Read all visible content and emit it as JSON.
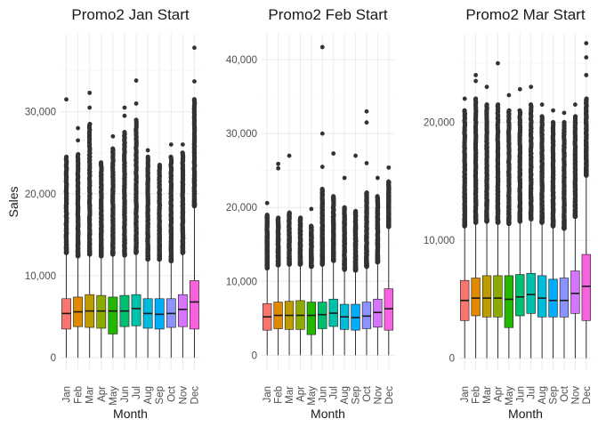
{
  "xlabel": "Month",
  "ylabel": "Sales",
  "months": [
    "Jan",
    "Feb",
    "Mar",
    "Apr",
    "May",
    "Jun",
    "Jul",
    "Aug",
    "Sep",
    "Oct",
    "Nov",
    "Dec"
  ],
  "colors": [
    "#F8766D",
    "#E18A00",
    "#BE9C00",
    "#8CAB00",
    "#24B700",
    "#00BE70",
    "#00C1AB",
    "#00BBDA",
    "#00ACFC",
    "#8B93FF",
    "#D575FE",
    "#F962DD"
  ],
  "chart_data": [
    {
      "type": "box",
      "title": "Promo2 Jan Start",
      "xlabel": "Month",
      "ylabel": "Sales",
      "categories": [
        "Jan",
        "Feb",
        "Mar",
        "Apr",
        "May",
        "Jun",
        "Jul",
        "Aug",
        "Sep",
        "Oct",
        "Nov",
        "Dec"
      ],
      "ylim": [
        -1500,
        39500
      ],
      "yticks": [
        0,
        10000,
        20000,
        30000
      ],
      "ytick_labels": [
        "0",
        "10,000",
        "20,000",
        "30,000"
      ],
      "boxes": [
        {
          "q1": 3500,
          "median": 5400,
          "q3": 7200,
          "whisker_low": 0,
          "whisker_high": 12800,
          "dense_top": 24500,
          "outliers": [
            31500
          ]
        },
        {
          "q1": 3800,
          "median": 5600,
          "q3": 7400,
          "whisker_low": 0,
          "whisker_high": 12400,
          "dense_top": 24800,
          "outliers": [
            26500,
            28000
          ]
        },
        {
          "q1": 3700,
          "median": 5700,
          "q3": 7700,
          "whisker_low": 0,
          "whisker_high": 12600,
          "dense_top": 28500,
          "outliers": [
            30500,
            32300
          ]
        },
        {
          "q1": 3600,
          "median": 5700,
          "q3": 7600,
          "whisker_low": 0,
          "whisker_high": 12400,
          "dense_top": 23800,
          "outliers": []
        },
        {
          "q1": 2900,
          "median": 5700,
          "q3": 7400,
          "whisker_low": 0,
          "whisker_high": 12600,
          "dense_top": 25500,
          "outliers": [
            27000
          ]
        },
        {
          "q1": 3800,
          "median": 5700,
          "q3": 7600,
          "whisker_low": 0,
          "whisker_high": 12500,
          "dense_top": 27500,
          "outliers": [
            29500,
            30500
          ]
        },
        {
          "q1": 3900,
          "median": 6000,
          "q3": 7700,
          "whisker_low": 0,
          "whisker_high": 12800,
          "dense_top": 29000,
          "outliers": [
            31000,
            33800
          ]
        },
        {
          "q1": 3600,
          "median": 5400,
          "q3": 7200,
          "whisker_low": 0,
          "whisker_high": 12000,
          "dense_top": 24500,
          "outliers": [
            25300
          ]
        },
        {
          "q1": 3500,
          "median": 5300,
          "q3": 7200,
          "whisker_low": 0,
          "whisker_high": 12000,
          "dense_top": 23500,
          "outliers": []
        },
        {
          "q1": 3700,
          "median": 5400,
          "q3": 7200,
          "whisker_low": 0,
          "whisker_high": 11800,
          "dense_top": 24500,
          "outliers": [
            26000
          ]
        },
        {
          "q1": 3800,
          "median": 5900,
          "q3": 7700,
          "whisker_low": 0,
          "whisker_high": 12800,
          "dense_top": 25000,
          "outliers": [
            26000
          ]
        },
        {
          "q1": 3500,
          "median": 6800,
          "q3": 9400,
          "whisker_low": 0,
          "whisker_high": 18500,
          "dense_top": 31500,
          "outliers": [
            33700,
            37800
          ]
        }
      ]
    },
    {
      "type": "box",
      "title": "Promo2 Feb Start",
      "xlabel": "Month",
      "ylabel": "",
      "categories": [
        "Jan",
        "Feb",
        "Mar",
        "Apr",
        "May",
        "Jun",
        "Jul",
        "Aug",
        "Sep",
        "Oct",
        "Nov",
        "Dec"
      ],
      "ylim": [
        -2000,
        43500
      ],
      "yticks": [
        0,
        10000,
        20000,
        30000,
        40000
      ],
      "ytick_labels": [
        "0",
        "10,000",
        "20,000",
        "30,000",
        "40,000"
      ],
      "boxes": [
        {
          "q1": 3400,
          "median": 5200,
          "q3": 7000,
          "whisker_low": 0,
          "whisker_high": 11800,
          "dense_top": 19000,
          "outliers": [
            20600
          ]
        },
        {
          "q1": 3600,
          "median": 5400,
          "q3": 7200,
          "whisker_low": 0,
          "whisker_high": 12200,
          "dense_top": 18600,
          "outliers": [
            25300,
            25900
          ]
        },
        {
          "q1": 3500,
          "median": 5400,
          "q3": 7300,
          "whisker_low": 0,
          "whisker_high": 12300,
          "dense_top": 19300,
          "outliers": [
            27000
          ]
        },
        {
          "q1": 3500,
          "median": 5400,
          "q3": 7400,
          "whisker_low": 0,
          "whisker_high": 12300,
          "dense_top": 18600,
          "outliers": []
        },
        {
          "q1": 2800,
          "median": 5400,
          "q3": 7200,
          "whisker_low": 0,
          "whisker_high": 12000,
          "dense_top": 17500,
          "outliers": [
            19800
          ]
        },
        {
          "q1": 3600,
          "median": 5500,
          "q3": 7200,
          "whisker_low": 0,
          "whisker_high": 12300,
          "dense_top": 22500,
          "outliers": [
            25500,
            30000,
            41700
          ]
        },
        {
          "q1": 3900,
          "median": 5700,
          "q3": 7600,
          "whisker_low": 0,
          "whisker_high": 12800,
          "dense_top": 21500,
          "outliers": [
            27300
          ]
        },
        {
          "q1": 3500,
          "median": 5200,
          "q3": 6900,
          "whisker_low": 0,
          "whisker_high": 11600,
          "dense_top": 20000,
          "outliers": [
            24000
          ]
        },
        {
          "q1": 3400,
          "median": 5100,
          "q3": 6900,
          "whisker_low": 0,
          "whisker_high": 11500,
          "dense_top": 19500,
          "outliers": [
            27000
          ]
        },
        {
          "q1": 3600,
          "median": 5300,
          "q3": 7200,
          "whisker_low": 0,
          "whisker_high": 12000,
          "dense_top": 22000,
          "outliers": [
            26000,
            31500,
            33000
          ]
        },
        {
          "q1": 3800,
          "median": 5800,
          "q3": 7600,
          "whisker_low": 0,
          "whisker_high": 12600,
          "dense_top": 21500,
          "outliers": [
            24000
          ]
        },
        {
          "q1": 3400,
          "median": 6300,
          "q3": 9000,
          "whisker_low": 0,
          "whisker_high": 17400,
          "dense_top": 23500,
          "outliers": [
            25400
          ]
        }
      ]
    },
    {
      "type": "box",
      "title": "Promo2 Mar Start",
      "xlabel": "Month",
      "ylabel": "",
      "categories": [
        "Jan",
        "Feb",
        "Mar",
        "Apr",
        "May",
        "Jun",
        "Jul",
        "Aug",
        "Sep",
        "Oct",
        "Nov",
        "Dec"
      ],
      "ylim": [
        -1000,
        27500
      ],
      "yticks": [
        0,
        10000,
        20000
      ],
      "ytick_labels": [
        "0",
        "10,000",
        "20,000"
      ],
      "boxes": [
        {
          "q1": 3200,
          "median": 4900,
          "q3": 6600,
          "whisker_low": 0,
          "whisker_high": 11200,
          "dense_top": 21000,
          "outliers": [
            22000
          ]
        },
        {
          "q1": 3600,
          "median": 5100,
          "q3": 6800,
          "whisker_low": 0,
          "whisker_high": 11500,
          "dense_top": 22000,
          "outliers": [
            23500,
            24000
          ]
        },
        {
          "q1": 3500,
          "median": 5100,
          "q3": 7000,
          "whisker_low": 0,
          "whisker_high": 11600,
          "dense_top": 21500,
          "outliers": [
            23000
          ]
        },
        {
          "q1": 3500,
          "median": 5100,
          "q3": 7000,
          "whisker_low": 0,
          "whisker_high": 11500,
          "dense_top": 21500,
          "outliers": [
            25000
          ]
        },
        {
          "q1": 2600,
          "median": 5000,
          "q3": 7000,
          "whisker_low": 0,
          "whisker_high": 11400,
          "dense_top": 21000,
          "outliers": [
            22300
          ]
        },
        {
          "q1": 3600,
          "median": 5200,
          "q3": 7100,
          "whisker_low": 0,
          "whisker_high": 11600,
          "dense_top": 21000,
          "outliers": [
            22800
          ]
        },
        {
          "q1": 3800,
          "median": 5400,
          "q3": 7200,
          "whisker_low": 0,
          "whisker_high": 11800,
          "dense_top": 21500,
          "outliers": [
            23000
          ]
        },
        {
          "q1": 3500,
          "median": 5100,
          "q3": 7000,
          "whisker_low": 0,
          "whisker_high": 11500,
          "dense_top": 20500,
          "outliers": [
            21500
          ]
        },
        {
          "q1": 3500,
          "median": 4900,
          "q3": 6700,
          "whisker_low": 0,
          "whisker_high": 11200,
          "dense_top": 20000,
          "outliers": [
            21000
          ]
        },
        {
          "q1": 3500,
          "median": 4900,
          "q3": 6800,
          "whisker_low": 0,
          "whisker_high": 11000,
          "dense_top": 20000,
          "outliers": [
            20800
          ]
        },
        {
          "q1": 3800,
          "median": 5500,
          "q3": 7400,
          "whisker_low": 0,
          "whisker_high": 12000,
          "dense_top": 20500,
          "outliers": [
            21500
          ]
        },
        {
          "q1": 3200,
          "median": 6100,
          "q3": 8800,
          "whisker_low": 0,
          "whisker_high": 15500,
          "dense_top": 22000,
          "outliers": [
            24000,
            25500,
            26700
          ]
        }
      ]
    }
  ]
}
